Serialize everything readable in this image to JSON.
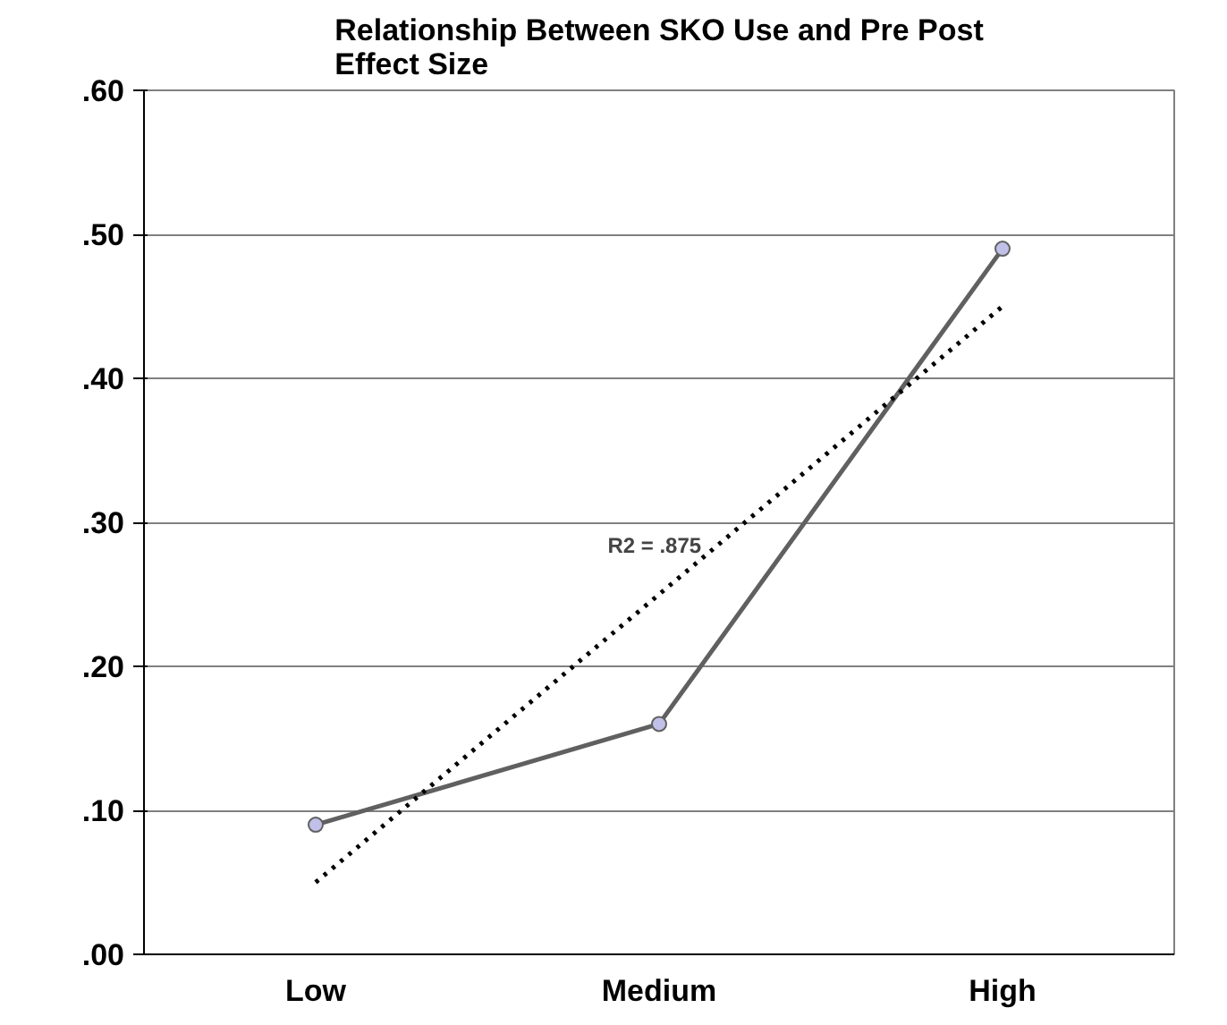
{
  "chart_data": {
    "type": "line",
    "title": "Relationship Between SKO Use and Pre Post\nEffect Size",
    "categories": [
      "Low",
      "Medium",
      "High"
    ],
    "series": [
      {
        "color": "#606060",
        "values": [
          0.09,
          0.16,
          0.49
        ],
        "marker": "circle",
        "line_style": "solid"
      },
      {
        "color": "#000000",
        "values": [
          0.05,
          0.25,
          0.45
        ],
        "marker": "none",
        "line_style": "dotted"
      }
    ],
    "ylim": [
      0,
      0.6
    ],
    "yticks": [
      {
        "value": 0,
        "label": ".00"
      },
      {
        "value": 0.1,
        "label": ".10"
      },
      {
        "value": 0.2,
        "label": ".20"
      },
      {
        "value": 0.3,
        "label": ".30"
      },
      {
        "value": 0.4,
        "label": ".40"
      },
      {
        "value": 0.5,
        "label": ".50"
      },
      {
        "value": 0.6,
        "label": ".60"
      }
    ],
    "grid": "y",
    "annotations": [
      "R2 = .875"
    ]
  }
}
